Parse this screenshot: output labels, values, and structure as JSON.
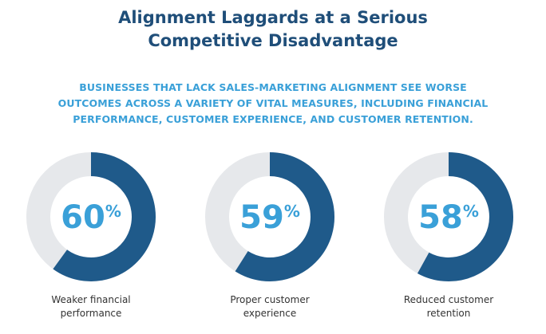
{
  "title_lines": [
    "Alignment Laggards at a Serious",
    "Competitive Disadvantage"
  ],
  "subtitle_lines": [
    "BUSINESSES THAT LACK SALES-MARKETING ALIGNMENT SEE WORSE",
    "OUTCOMES ACROSS A VARIETY OF VITAL MEASURES, INCLUDING FINANCIAL",
    "PERFORMANCE, CUSTOMER EXPERIENCE, AND CUSTOMER RETENTION."
  ],
  "colors": {
    "title": "#1f4e79",
    "subtitle": "#3aa0d8",
    "ring_fill": "#1f5a8a",
    "ring_track": "#e6e8eb",
    "value_text": "#3aa0d8"
  },
  "chart_data": {
    "type": "pie",
    "charts": [
      {
        "value": 60,
        "value_text": "60",
        "unit": "%",
        "label_lines": [
          "Weaker financial",
          "performance"
        ]
      },
      {
        "value": 59,
        "value_text": "59",
        "unit": "%",
        "label_lines": [
          "Proper customer",
          "experience"
        ]
      },
      {
        "value": 58,
        "value_text": "58",
        "unit": "%",
        "label_lines": [
          "Reduced customer",
          "retention"
        ]
      }
    ]
  }
}
